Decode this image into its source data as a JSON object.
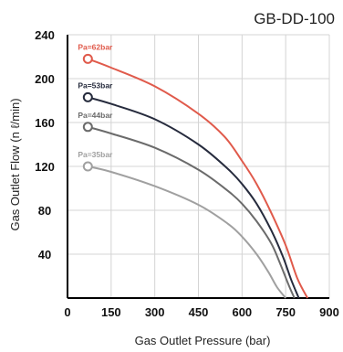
{
  "chart_data": {
    "type": "line",
    "title": "GB-DD-100",
    "xlabel": "Gas Outlet Pressure (bar)",
    "ylabel": "Gas Outlet Flow (n ℓ/min)",
    "xlim": [
      0,
      900
    ],
    "ylim": [
      0,
      240
    ],
    "x_ticks": [
      0,
      150,
      300,
      450,
      600,
      750,
      900
    ],
    "y_ticks": [
      40,
      80,
      120,
      160,
      200,
      240
    ],
    "grid": true,
    "series": [
      {
        "name": "Pa=62bar",
        "color": "#e05a4b",
        "x": [
          70,
          150,
          300,
          450,
          540,
          600,
          650,
          700,
          750,
          790,
          825
        ],
        "y": [
          218,
          210,
          193,
          168,
          147,
          125,
          104,
          78,
          48,
          18,
          0
        ]
      },
      {
        "name": "Pa=53bar",
        "color": "#262b3d",
        "x": [
          70,
          150,
          300,
          450,
          550,
          600,
          650,
          700,
          740,
          770,
          795
        ],
        "y": [
          183,
          177,
          163,
          140,
          118,
          104,
          86,
          62,
          38,
          16,
          0
        ]
      },
      {
        "name": "Pa=44bar",
        "color": "#6b6b6b",
        "x": [
          70,
          150,
          300,
          450,
          550,
          600,
          650,
          700,
          730,
          760,
          780
        ],
        "y": [
          156,
          150,
          137,
          117,
          98,
          86,
          70,
          50,
          32,
          12,
          0
        ]
      },
      {
        "name": "Pa=35bar",
        "color": "#a0a0a0",
        "x": [
          70,
          150,
          300,
          450,
          550,
          600,
          650,
          690,
          720,
          750
        ],
        "y": [
          120,
          115,
          102,
          85,
          68,
          56,
          40,
          24,
          10,
          0
        ]
      }
    ]
  }
}
